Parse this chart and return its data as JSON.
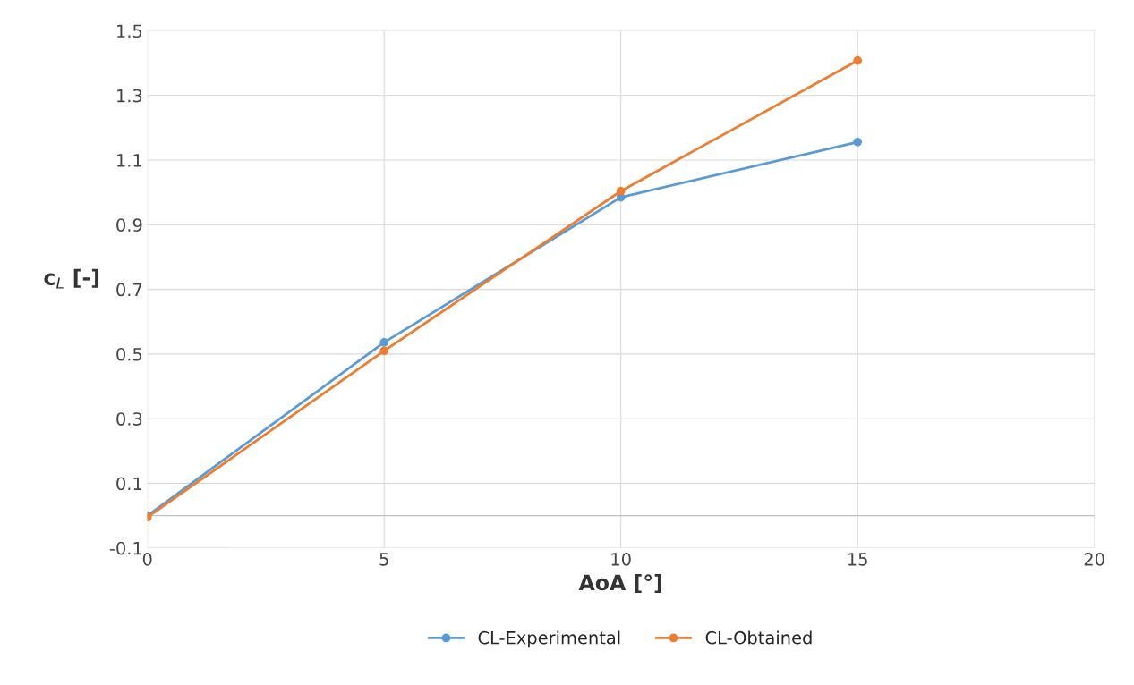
{
  "chart_data": {
    "type": "line",
    "xlabel": "AoA [°]",
    "ylabel": "c$_{L}$ [-]",
    "x": [
      0,
      5,
      10,
      15
    ],
    "series": [
      {
        "name": "CL-Experimental",
        "color": "#5b9bd5",
        "values": [
          0.0,
          0.536,
          0.985,
          1.156
        ]
      },
      {
        "name": "CL-Obtained",
        "color": "#ed7d31",
        "values": [
          -0.005,
          0.51,
          1.004,
          1.408
        ]
      }
    ],
    "xlim": [
      0,
      20
    ],
    "xticks": [
      0,
      5,
      10,
      15,
      20
    ],
    "ylim": [
      -0.1,
      1.5
    ],
    "yticks": [
      -0.1,
      0.1,
      0.3,
      0.5,
      0.7,
      0.9,
      1.1,
      1.3,
      1.5
    ],
    "grid": true,
    "legend": "bottom",
    "marker": "circle",
    "line_style": "solid"
  }
}
